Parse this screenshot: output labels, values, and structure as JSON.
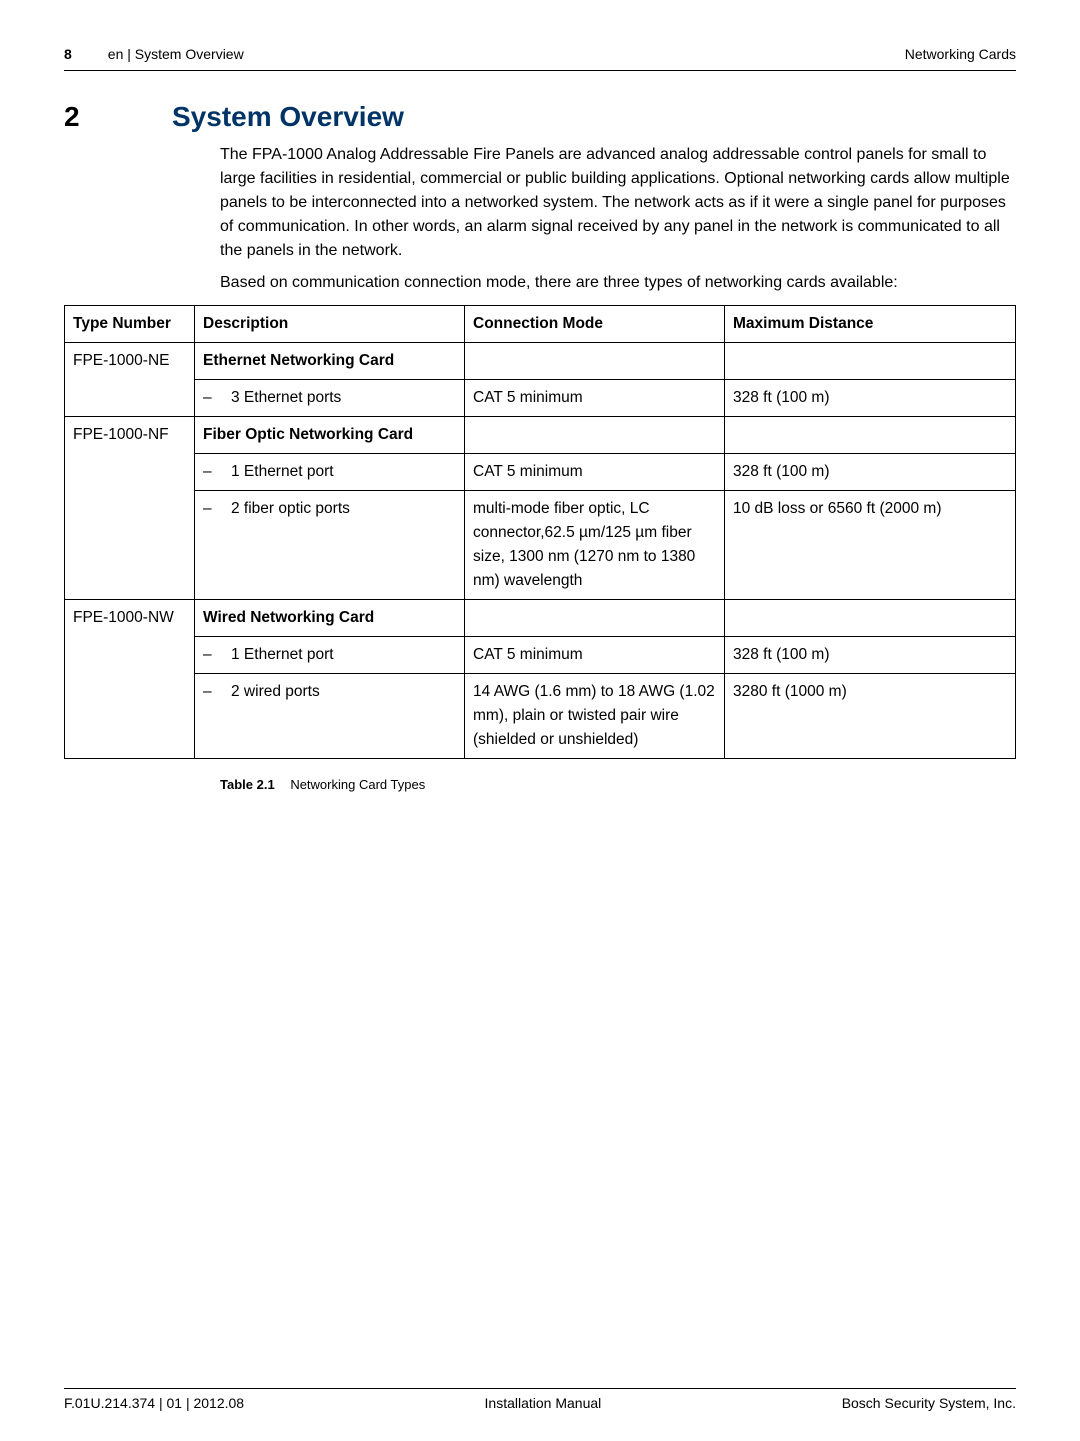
{
  "header": {
    "page_number": "8",
    "breadcrumb": "en | System Overview",
    "right": "Networking Cards"
  },
  "heading": {
    "chapter": "2",
    "title": "System Overview",
    "title_color": "#003366"
  },
  "intro": {
    "p1": "The FPA-1000 Analog Addressable Fire Panels are advanced analog addressable control panels for small to large facilities in residential, commercial or public building applications. Optional networking cards allow multiple panels to be interconnected into a networked system. The network acts as if it were a single panel for purposes of communication. In other words, an alarm signal received by any panel in the network is communicated to all the panels in the network.",
    "p2": "Based on communication connection mode, there are three types of networking cards available:"
  },
  "table": {
    "headers": {
      "type_number": "Type Number",
      "description": "Description",
      "connection_mode": "Connection Mode",
      "max_distance": "Maximum Distance"
    },
    "groups": [
      {
        "type_number": "FPE-1000-NE",
        "card_name": "Ethernet Networking Card",
        "rows": [
          {
            "desc": "3 Ethernet ports",
            "conn": "CAT 5 minimum",
            "dist": "328 ft (100 m)"
          }
        ]
      },
      {
        "type_number": "FPE-1000-NF",
        "card_name": "Fiber Optic Networking Card",
        "rows": [
          {
            "desc": "1 Ethernet port",
            "conn": "CAT 5 minimum",
            "dist": "328 ft (100 m)"
          },
          {
            "desc": "2 fiber optic ports",
            "conn": "multi-mode fiber optic, LC connector,62.5 µm/125 µm fiber size, 1300 nm (1270 nm to 1380 nm) wavelength",
            "dist": "10 dB loss or 6560 ft (2000 m)"
          }
        ]
      },
      {
        "type_number": "FPE-1000-NW",
        "card_name": "Wired Networking Card",
        "rows": [
          {
            "desc": "1 Ethernet port",
            "conn": "CAT 5 minimum",
            "dist": "328 ft (100 m)"
          },
          {
            "desc": "2 wired ports",
            "conn": "14 AWG (1.6 mm) to 18 AWG (1.02 mm), plain or twisted pair wire (shielded or unshielded)",
            "dist": "3280 ft (1000 m)"
          }
        ]
      }
    ],
    "caption_label": "Table 2.1",
    "caption_text": "Networking Card Types"
  },
  "footer": {
    "left": "F.01U.214.374 | 01 | 2012.08",
    "center": "Installation Manual",
    "right": "Bosch Security System, Inc."
  }
}
